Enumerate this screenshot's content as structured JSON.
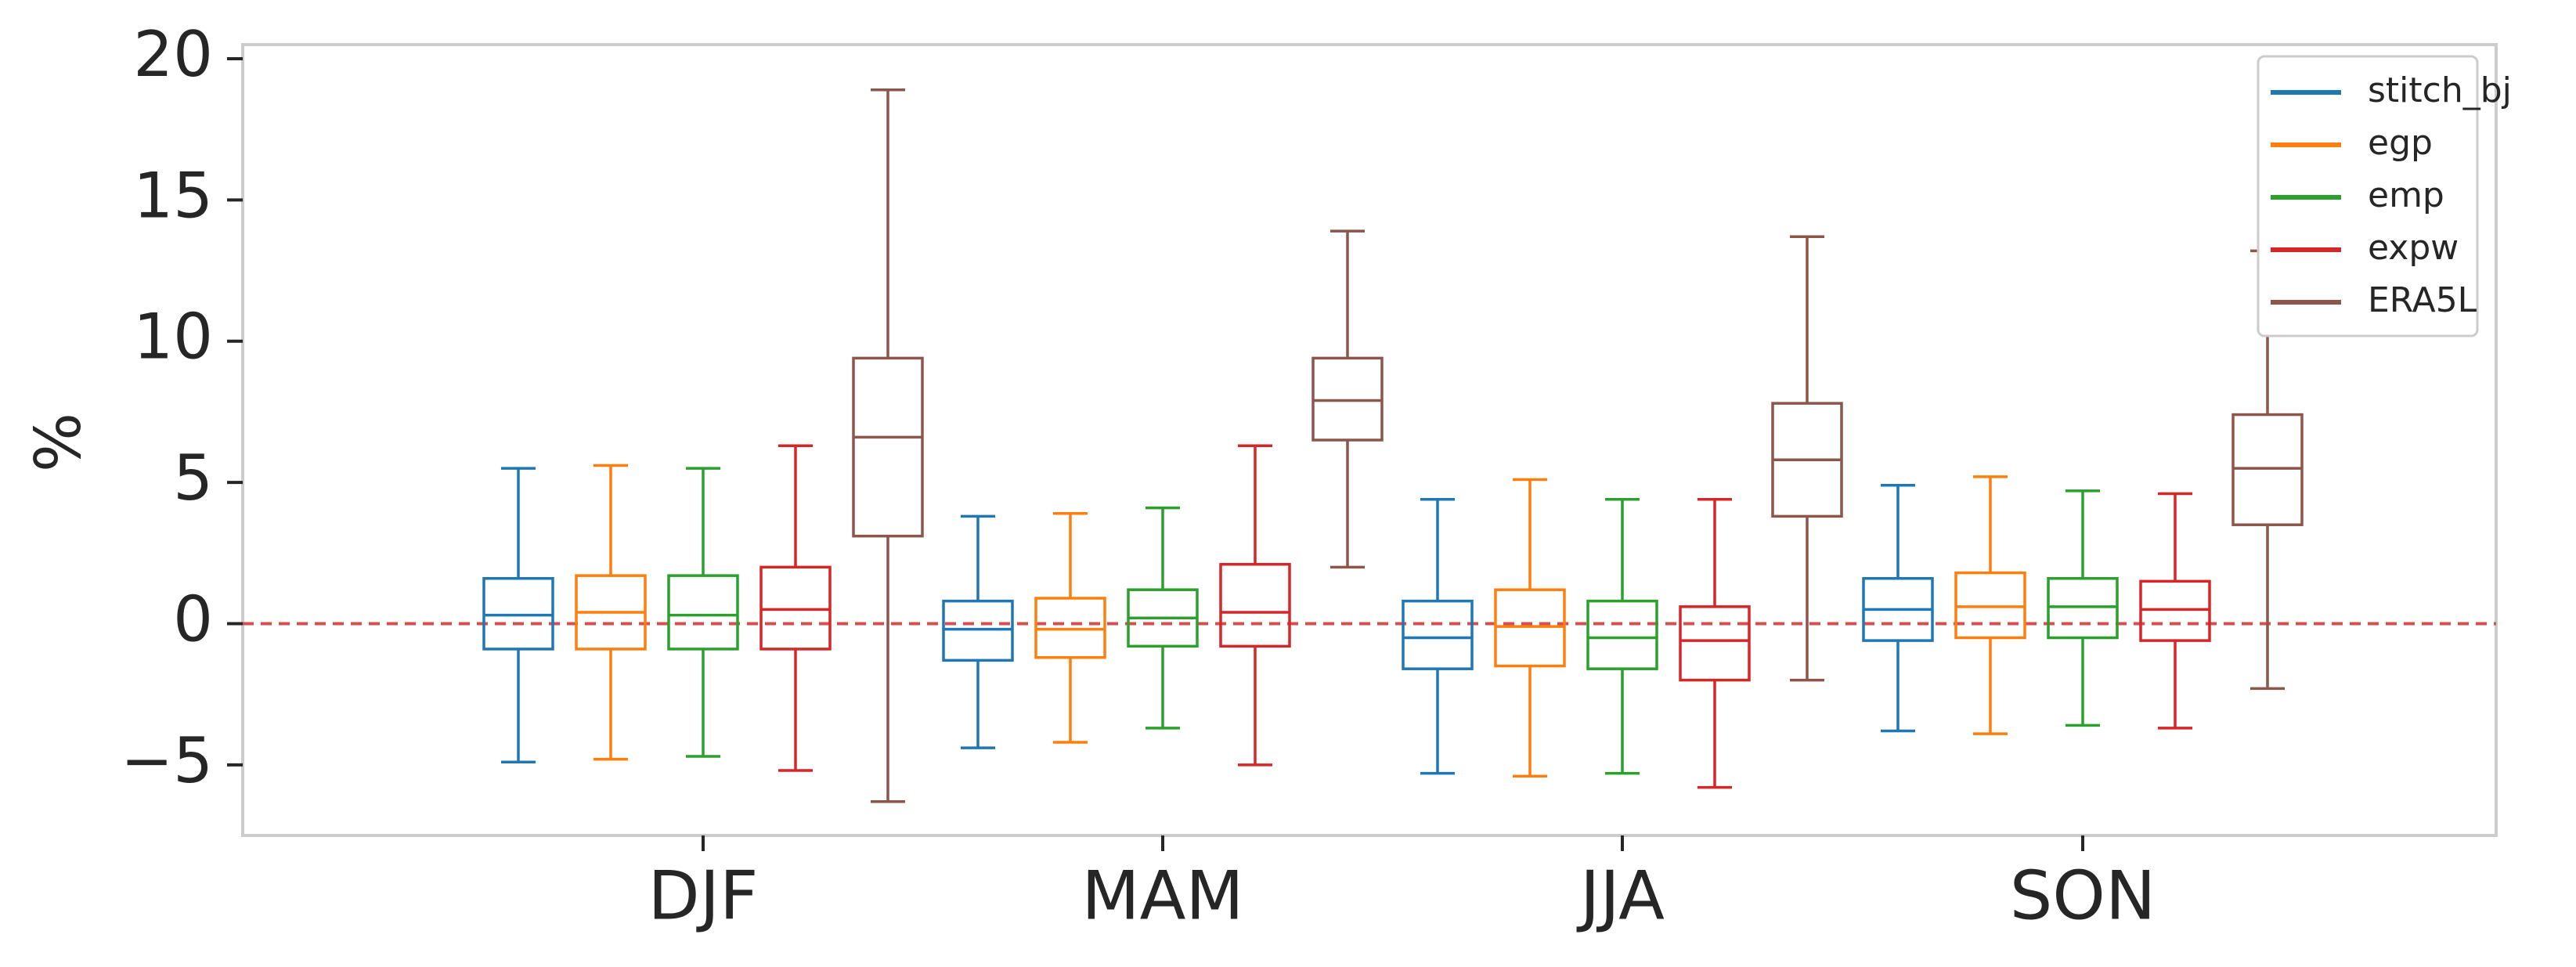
{
  "chart_data": {
    "type": "boxplot",
    "title": "",
    "xlabel": "",
    "ylabel": "%",
    "ylim": [
      -7.5,
      20.5
    ],
    "yticks": [
      {
        "value": -5,
        "label": "−5"
      },
      {
        "value": 0,
        "label": "0"
      },
      {
        "value": 5,
        "label": "5"
      },
      {
        "value": 10,
        "label": "10"
      },
      {
        "value": 15,
        "label": "15"
      },
      {
        "value": 20,
        "label": "20"
      }
    ],
    "categories": [
      "DJF",
      "MAM",
      "JJA",
      "SON"
    ],
    "reference_line": {
      "value": 0,
      "style": "dashed",
      "color": "#d45050"
    },
    "legend_position": "top-right",
    "series": [
      {
        "name": "stitch_bj",
        "color": "#1f77b4",
        "boxes": [
          {
            "whislo": -4.9,
            "q1": -0.9,
            "med": 0.3,
            "q3": 1.6,
            "whishi": 5.5
          },
          {
            "whislo": -4.4,
            "q1": -1.3,
            "med": -0.2,
            "q3": 0.8,
            "whishi": 3.8
          },
          {
            "whislo": -5.3,
            "q1": -1.6,
            "med": -0.5,
            "q3": 0.8,
            "whishi": 4.4
          },
          {
            "whislo": -3.8,
            "q1": -0.6,
            "med": 0.5,
            "q3": 1.6,
            "whishi": 4.9
          }
        ]
      },
      {
        "name": "egp",
        "color": "#ff7f0e",
        "boxes": [
          {
            "whislo": -4.8,
            "q1": -0.9,
            "med": 0.4,
            "q3": 1.7,
            "whishi": 5.6
          },
          {
            "whislo": -4.2,
            "q1": -1.2,
            "med": -0.2,
            "q3": 0.9,
            "whishi": 3.9
          },
          {
            "whislo": -5.4,
            "q1": -1.5,
            "med": -0.1,
            "q3": 1.2,
            "whishi": 5.1
          },
          {
            "whislo": -3.9,
            "q1": -0.5,
            "med": 0.6,
            "q3": 1.8,
            "whishi": 5.2
          }
        ]
      },
      {
        "name": "emp",
        "color": "#2ca02c",
        "boxes": [
          {
            "whislo": -4.7,
            "q1": -0.9,
            "med": 0.3,
            "q3": 1.7,
            "whishi": 5.5
          },
          {
            "whislo": -3.7,
            "q1": -0.8,
            "med": 0.2,
            "q3": 1.2,
            "whishi": 4.1
          },
          {
            "whislo": -5.3,
            "q1": -1.6,
            "med": -0.5,
            "q3": 0.8,
            "whishi": 4.4
          },
          {
            "whislo": -3.6,
            "q1": -0.5,
            "med": 0.6,
            "q3": 1.6,
            "whishi": 4.7
          }
        ]
      },
      {
        "name": "expw",
        "color": "#d62728",
        "boxes": [
          {
            "whislo": -5.2,
            "q1": -0.9,
            "med": 0.5,
            "q3": 2.0,
            "whishi": 6.3
          },
          {
            "whislo": -5.0,
            "q1": -0.8,
            "med": 0.4,
            "q3": 2.1,
            "whishi": 6.3
          },
          {
            "whislo": -5.8,
            "q1": -2.0,
            "med": -0.6,
            "q3": 0.6,
            "whishi": 4.4
          },
          {
            "whislo": -3.7,
            "q1": -0.6,
            "med": 0.5,
            "q3": 1.5,
            "whishi": 4.6
          }
        ]
      },
      {
        "name": "ERA5L",
        "color": "#8c564b",
        "boxes": [
          {
            "whislo": -6.3,
            "q1": 3.1,
            "med": 6.6,
            "q3": 9.4,
            "whishi": 18.9
          },
          {
            "whislo": 2.0,
            "q1": 6.5,
            "med": 7.9,
            "q3": 9.4,
            "whishi": 13.9
          },
          {
            "whislo": -2.0,
            "q1": 3.8,
            "med": 5.8,
            "q3": 7.8,
            "whishi": 13.7
          },
          {
            "whislo": -2.3,
            "q1": 3.5,
            "med": 5.5,
            "q3": 7.4,
            "whishi": 13.2
          }
        ]
      }
    ]
  }
}
